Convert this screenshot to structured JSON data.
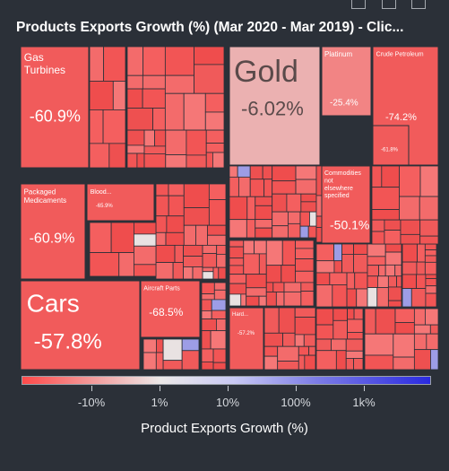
{
  "title": "Products Exports Growth (%) (Mar 2020 - Mar 2019) - Clic...",
  "toolbar": {
    "icons": [
      "table-view-icon",
      "image-download-icon",
      "export-icon"
    ]
  },
  "chart_data": {
    "type": "treemap",
    "metric": "Product Exports Growth (%)",
    "labeled_tiles": [
      {
        "name": "Gas Turbines",
        "value": "-60.9%",
        "growth": -60.9
      },
      {
        "name": "Gold",
        "value": "-6.02%",
        "growth": -6.02
      },
      {
        "name": "Platinum",
        "value": "-25.4%",
        "growth": -25.4
      },
      {
        "name": "Crude Petroleum",
        "value": "-74.2%",
        "growth": -74.2
      },
      {
        "name": "",
        "value": "-61.8%",
        "growth": -61.8
      },
      {
        "name": "Packaged Medicaments",
        "value": "-60.9%",
        "growth": -60.9
      },
      {
        "name": "Blood...",
        "value": "-65.9%",
        "growth": -65.9
      },
      {
        "name": "Commodities not elsewhere specified",
        "value": "-50.1%",
        "growth": -50.1
      },
      {
        "name": "Cars",
        "value": "-57.8%",
        "growth": -57.8
      },
      {
        "name": "Aircraft Parts",
        "value": "-68.5%",
        "growth": -68.5
      },
      {
        "name": "Hard...",
        "value": "-57.2%",
        "growth": -57.2
      }
    ],
    "colorscale": {
      "ticks": [
        "-10%",
        "1%",
        "10%",
        "100%",
        "1k%"
      ],
      "title": "Product Exports Growth (%)",
      "colors": {
        "negative": "#ff4a4a",
        "neutral": "#ece9e9",
        "positive": "#2a2ae0"
      }
    }
  }
}
